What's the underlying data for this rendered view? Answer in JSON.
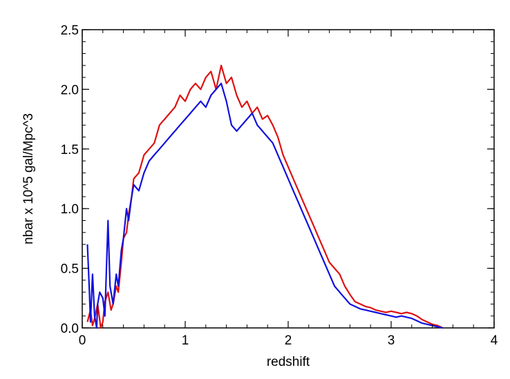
{
  "chart_data": {
    "type": "line",
    "xlabel": "redshift",
    "ylabel": "nbar x 10^5 gal/Mpc^3",
    "xlim": [
      0,
      4
    ],
    "ylim": [
      0,
      2.5
    ],
    "x_ticks": [
      0,
      1,
      2,
      3,
      4
    ],
    "x_tick_labels": [
      "0",
      "1",
      "2",
      "3",
      "4"
    ],
    "y_ticks": [
      0,
      0.5,
      1.0,
      1.5,
      2.0,
      2.5
    ],
    "y_tick_labels": [
      "0.0",
      "0.5",
      "1.0",
      "1.5",
      "2.0",
      "2.5"
    ],
    "grid": false,
    "legend": "none",
    "series": [
      {
        "color": "#dd1111",
        "x": [
          0.05,
          0.08,
          0.1,
          0.12,
          0.15,
          0.18,
          0.2,
          0.22,
          0.25,
          0.28,
          0.3,
          0.33,
          0.35,
          0.38,
          0.4,
          0.43,
          0.45,
          0.48,
          0.5,
          0.55,
          0.6,
          0.65,
          0.7,
          0.75,
          0.8,
          0.85,
          0.9,
          0.95,
          1.0,
          1.05,
          1.1,
          1.15,
          1.2,
          1.25,
          1.3,
          1.35,
          1.4,
          1.45,
          1.5,
          1.55,
          1.6,
          1.65,
          1.7,
          1.75,
          1.8,
          1.85,
          1.9,
          1.95,
          2.0,
          2.05,
          2.1,
          2.15,
          2.2,
          2.25,
          2.3,
          2.35,
          2.4,
          2.45,
          2.5,
          2.55,
          2.6,
          2.65,
          2.7,
          2.75,
          2.8,
          2.85,
          2.9,
          2.95,
          3.0,
          3.05,
          3.1,
          3.15,
          3.2,
          3.25,
          3.3,
          3.35,
          3.4,
          3.45,
          3.5
        ],
        "y": [
          0.05,
          0.15,
          0.02,
          0.08,
          0.2,
          0.0,
          0.05,
          0.22,
          0.3,
          0.15,
          0.2,
          0.35,
          0.3,
          0.55,
          0.75,
          0.8,
          0.95,
          1.1,
          1.25,
          1.3,
          1.45,
          1.5,
          1.55,
          1.7,
          1.75,
          1.8,
          1.85,
          1.95,
          1.9,
          2.0,
          2.05,
          2.0,
          2.1,
          2.15,
          2.0,
          2.2,
          2.05,
          2.1,
          1.95,
          1.85,
          1.9,
          1.8,
          1.85,
          1.75,
          1.78,
          1.7,
          1.6,
          1.45,
          1.35,
          1.25,
          1.15,
          1.05,
          0.95,
          0.85,
          0.75,
          0.65,
          0.55,
          0.5,
          0.45,
          0.35,
          0.28,
          0.22,
          0.2,
          0.18,
          0.17,
          0.15,
          0.14,
          0.13,
          0.14,
          0.13,
          0.12,
          0.13,
          0.12,
          0.1,
          0.07,
          0.05,
          0.03,
          0.02,
          0.0
        ]
      },
      {
        "color": "#1111dd",
        "x": [
          0.05,
          0.07,
          0.08,
          0.1,
          0.12,
          0.14,
          0.15,
          0.17,
          0.2,
          0.22,
          0.25,
          0.27,
          0.3,
          0.33,
          0.35,
          0.38,
          0.4,
          0.43,
          0.45,
          0.48,
          0.5,
          0.55,
          0.6,
          0.65,
          0.7,
          0.75,
          0.8,
          0.85,
          0.9,
          0.95,
          1.0,
          1.05,
          1.1,
          1.15,
          1.2,
          1.25,
          1.3,
          1.35,
          1.4,
          1.45,
          1.5,
          1.55,
          1.6,
          1.65,
          1.7,
          1.75,
          1.8,
          1.85,
          1.9,
          1.95,
          2.0,
          2.05,
          2.1,
          2.15,
          2.2,
          2.25,
          2.3,
          2.35,
          2.4,
          2.45,
          2.5,
          2.55,
          2.6,
          2.65,
          2.7,
          2.75,
          2.8,
          2.85,
          2.9,
          2.95,
          3.0,
          3.05,
          3.1,
          3.15,
          3.2,
          3.25,
          3.3,
          3.35,
          3.4,
          3.45,
          3.5
        ],
        "y": [
          0.7,
          0.3,
          0.05,
          0.45,
          0.1,
          0.0,
          0.2,
          0.3,
          0.25,
          0.1,
          0.9,
          0.35,
          0.2,
          0.45,
          0.35,
          0.65,
          0.75,
          1.0,
          0.9,
          1.1,
          1.2,
          1.15,
          1.3,
          1.4,
          1.45,
          1.5,
          1.55,
          1.6,
          1.65,
          1.7,
          1.75,
          1.8,
          1.85,
          1.9,
          1.85,
          1.95,
          2.0,
          2.05,
          1.9,
          1.7,
          1.65,
          1.7,
          1.75,
          1.8,
          1.7,
          1.65,
          1.6,
          1.55,
          1.45,
          1.35,
          1.25,
          1.15,
          1.05,
          0.95,
          0.85,
          0.75,
          0.65,
          0.55,
          0.45,
          0.35,
          0.3,
          0.25,
          0.2,
          0.18,
          0.16,
          0.15,
          0.14,
          0.13,
          0.12,
          0.11,
          0.1,
          0.09,
          0.1,
          0.09,
          0.08,
          0.06,
          0.04,
          0.03,
          0.02,
          0.01,
          0.0
        ]
      }
    ]
  }
}
